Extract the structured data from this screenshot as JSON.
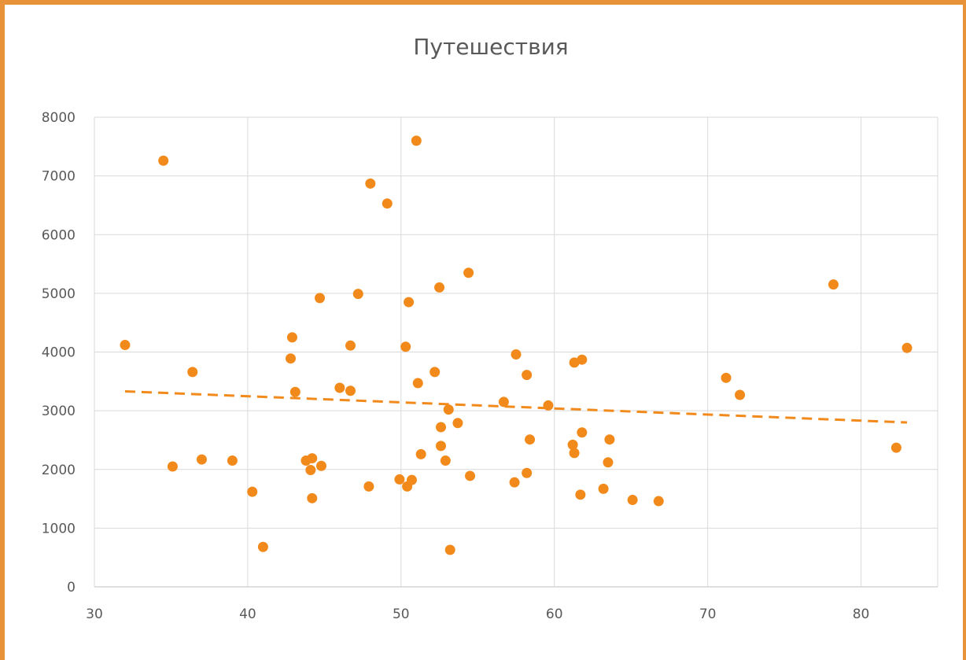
{
  "chart_data": {
    "type": "scatter",
    "title": "Путешествия",
    "xlabel": "",
    "ylabel": "",
    "xlim": [
      30,
      85
    ],
    "ylim": [
      0,
      8000
    ],
    "x_ticks": [
      30,
      40,
      50,
      60,
      70,
      80
    ],
    "y_ticks": [
      0,
      1000,
      2000,
      3000,
      4000,
      5000,
      6000,
      7000,
      8000
    ],
    "grid": true,
    "legend": "none",
    "colors": {
      "points": "#f28a1b",
      "trendline": "#f28a1b",
      "grid": "#d9d9d9",
      "frame": "#e8923a"
    },
    "trendline": {
      "style": "dashed",
      "from": [
        32,
        3330
      ],
      "to": [
        83,
        2800
      ]
    },
    "points": [
      {
        "x": 32.0,
        "y": 4120
      },
      {
        "x": 34.5,
        "y": 7260
      },
      {
        "x": 35.1,
        "y": 2050
      },
      {
        "x": 36.4,
        "y": 3660
      },
      {
        "x": 37.0,
        "y": 2170
      },
      {
        "x": 39.0,
        "y": 2150
      },
      {
        "x": 40.3,
        "y": 1620
      },
      {
        "x": 41.0,
        "y": 680
      },
      {
        "x": 42.8,
        "y": 3890
      },
      {
        "x": 42.9,
        "y": 4250
      },
      {
        "x": 43.1,
        "y": 3320
      },
      {
        "x": 43.8,
        "y": 2150
      },
      {
        "x": 44.1,
        "y": 1990
      },
      {
        "x": 44.2,
        "y": 2190
      },
      {
        "x": 44.2,
        "y": 1510
      },
      {
        "x": 44.7,
        "y": 4920
      },
      {
        "x": 44.8,
        "y": 2060
      },
      {
        "x": 46.0,
        "y": 3390
      },
      {
        "x": 46.7,
        "y": 3340
      },
      {
        "x": 46.7,
        "y": 4110
      },
      {
        "x": 47.2,
        "y": 4990
      },
      {
        "x": 47.9,
        "y": 1710
      },
      {
        "x": 48.0,
        "y": 6870
      },
      {
        "x": 49.1,
        "y": 6530
      },
      {
        "x": 49.9,
        "y": 1830
      },
      {
        "x": 50.3,
        "y": 4090
      },
      {
        "x": 50.4,
        "y": 1710
      },
      {
        "x": 50.5,
        "y": 4850
      },
      {
        "x": 50.7,
        "y": 1820
      },
      {
        "x": 51.0,
        "y": 7600
      },
      {
        "x": 51.1,
        "y": 3470
      },
      {
        "x": 51.3,
        "y": 2260
      },
      {
        "x": 52.2,
        "y": 3660
      },
      {
        "x": 52.5,
        "y": 5100
      },
      {
        "x": 52.6,
        "y": 2720
      },
      {
        "x": 52.6,
        "y": 2400
      },
      {
        "x": 52.9,
        "y": 2150
      },
      {
        "x": 53.1,
        "y": 3020
      },
      {
        "x": 53.2,
        "y": 630
      },
      {
        "x": 53.7,
        "y": 2790
      },
      {
        "x": 54.4,
        "y": 5350
      },
      {
        "x": 54.5,
        "y": 1890
      },
      {
        "x": 56.7,
        "y": 3150
      },
      {
        "x": 57.4,
        "y": 1780
      },
      {
        "x": 57.5,
        "y": 3960
      },
      {
        "x": 58.2,
        "y": 3610
      },
      {
        "x": 58.2,
        "y": 1940
      },
      {
        "x": 58.4,
        "y": 2510
      },
      {
        "x": 59.6,
        "y": 3090
      },
      {
        "x": 61.2,
        "y": 2420
      },
      {
        "x": 61.3,
        "y": 3820
      },
      {
        "x": 61.3,
        "y": 2280
      },
      {
        "x": 61.7,
        "y": 1570
      },
      {
        "x": 61.8,
        "y": 3870
      },
      {
        "x": 61.8,
        "y": 2630
      },
      {
        "x": 63.2,
        "y": 1670
      },
      {
        "x": 63.5,
        "y": 2120
      },
      {
        "x": 63.6,
        "y": 2510
      },
      {
        "x": 65.1,
        "y": 1480
      },
      {
        "x": 66.8,
        "y": 1460
      },
      {
        "x": 71.2,
        "y": 3560
      },
      {
        "x": 72.1,
        "y": 3270
      },
      {
        "x": 78.2,
        "y": 5150
      },
      {
        "x": 82.3,
        "y": 2370
      },
      {
        "x": 83.0,
        "y": 4070
      }
    ]
  }
}
